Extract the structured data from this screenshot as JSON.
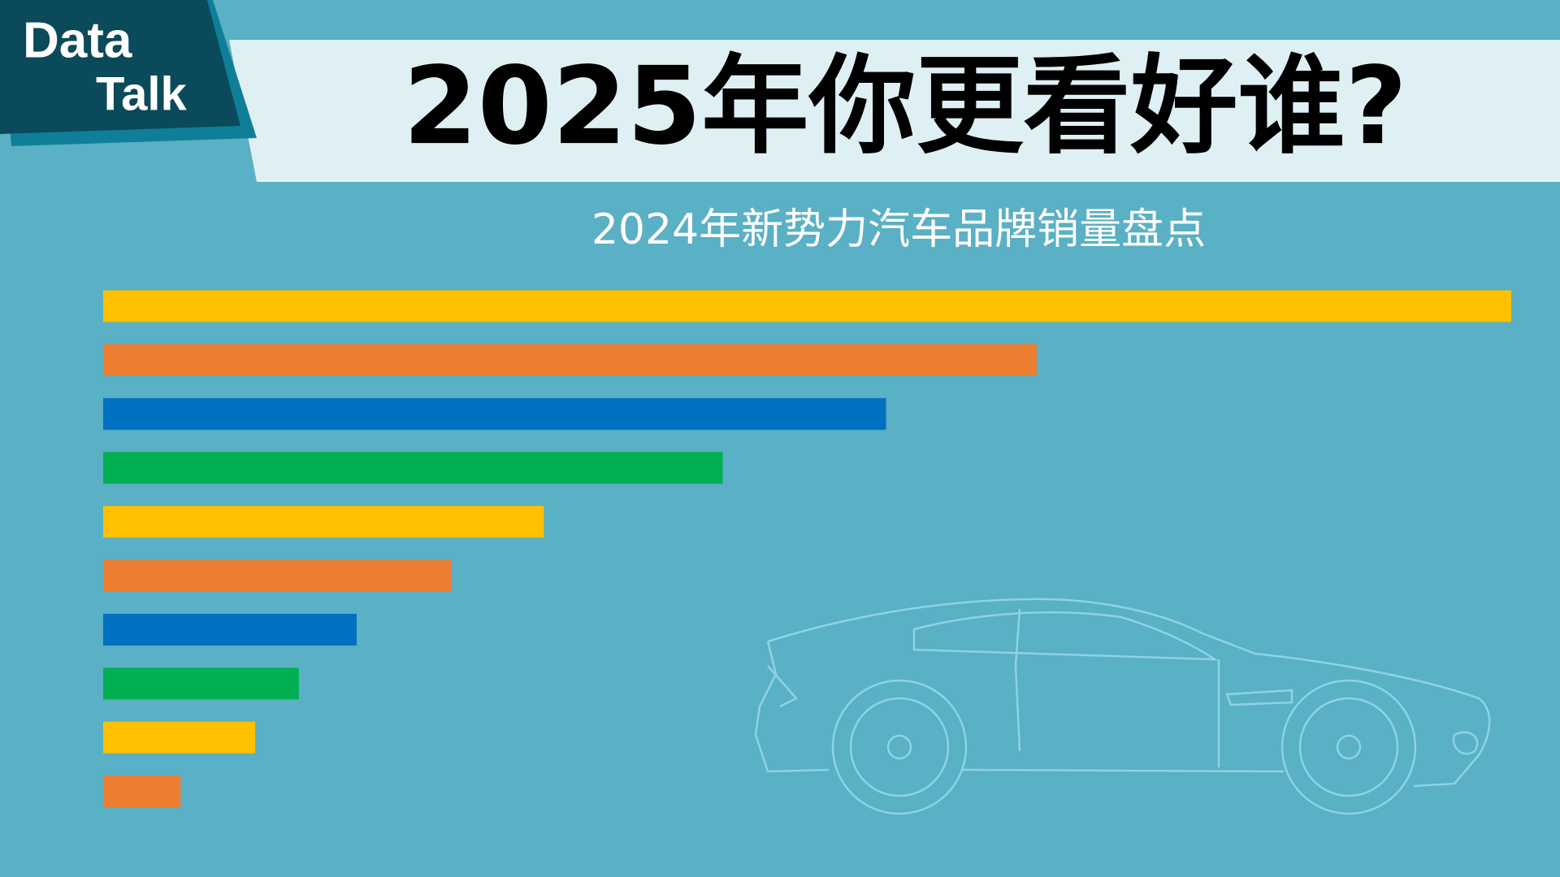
{
  "logo": {
    "line1": "Data",
    "line2": "Talk"
  },
  "chart_data": {
    "type": "bar",
    "orientation": "horizontal",
    "title": "2025年你更看好谁?",
    "subtitle": "2024年新势力汽车品牌销量盘点",
    "values": [
      100,
      66.3,
      55.6,
      44,
      31.3,
      24.7,
      18,
      13.9,
      10.8,
      5.5
    ],
    "colors": [
      "#FFC000",
      "#ED7D31",
      "#0070C0",
      "#00B050",
      "#FFC000",
      "#ED7D31",
      "#0070C0",
      "#00B050",
      "#FFC000",
      "#ED7D31"
    ],
    "xlim": [
      0,
      100
    ]
  }
}
